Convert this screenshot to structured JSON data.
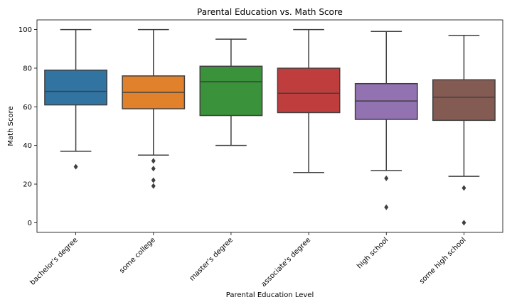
{
  "chart_data": {
    "type": "box",
    "title": "Parental Education vs. Math Score",
    "xlabel": "Parental Education Level",
    "ylabel": "Math Score",
    "ylim": [
      -5,
      105
    ],
    "yticks": [
      0,
      20,
      40,
      60,
      80,
      100
    ],
    "grid": false,
    "categories": [
      "bachelor's degree",
      "some college",
      "master's degree",
      "associate's degree",
      "high school",
      "some high school"
    ],
    "boxes": [
      {
        "category": "bachelor's degree",
        "whisker_low": 37,
        "q1": 61,
        "median": 68,
        "q3": 79,
        "whisker_high": 100,
        "outliers": [
          29
        ],
        "color": "#3274a1"
      },
      {
        "category": "some college",
        "whisker_low": 35,
        "q1": 59,
        "median": 67.5,
        "q3": 76,
        "whisker_high": 100,
        "outliers": [
          32,
          28,
          22,
          19
        ],
        "color": "#e1812c"
      },
      {
        "category": "master's degree",
        "whisker_low": 40,
        "q1": 55.5,
        "median": 73,
        "q3": 81,
        "whisker_high": 95,
        "outliers": [],
        "color": "#3a923a"
      },
      {
        "category": "associate's degree",
        "whisker_low": 26,
        "q1": 57,
        "median": 67,
        "q3": 80,
        "whisker_high": 100,
        "outliers": [],
        "color": "#c03d3e"
      },
      {
        "category": "high school",
        "whisker_low": 27,
        "q1": 53.5,
        "median": 63,
        "q3": 72,
        "whisker_high": 99,
        "outliers": [
          23,
          8
        ],
        "color": "#9372b2"
      },
      {
        "category": "some high school",
        "whisker_low": 24,
        "q1": 53,
        "median": 65,
        "q3": 74,
        "whisker_high": 97,
        "outliers": [
          18,
          0
        ],
        "color": "#845b53"
      }
    ]
  }
}
